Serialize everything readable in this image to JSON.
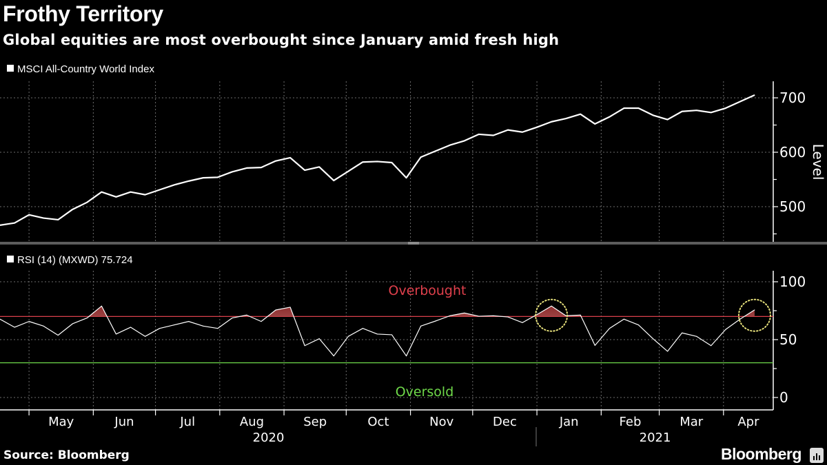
{
  "title": "Frothy Territory",
  "subtitle": "Global equities are most overbought since January amid fresh high",
  "source": "Source: Bloomberg",
  "logo": "Bloomberg",
  "colors": {
    "background": "#000000",
    "line": "#ffffff",
    "overbought": "#e0404c",
    "oversold": "#6fd94a",
    "overbought_fill": "#8e2e2e",
    "annotation": "#e8e27c",
    "grid": "#8a8a8a"
  },
  "x_axis": {
    "range": [
      "2020-04-17",
      "2021-04-25"
    ],
    "months": [
      {
        "label": "May",
        "start": "2020-05-01",
        "end": "2020-06-01"
      },
      {
        "label": "Jun",
        "start": "2020-06-01",
        "end": "2020-07-01"
      },
      {
        "label": "Jul",
        "start": "2020-07-01",
        "end": "2020-08-01"
      },
      {
        "label": "Aug",
        "start": "2020-08-01",
        "end": "2020-09-01"
      },
      {
        "label": "Sep",
        "start": "2020-09-01",
        "end": "2020-10-01"
      },
      {
        "label": "Oct",
        "start": "2020-10-01",
        "end": "2020-11-01"
      },
      {
        "label": "Nov",
        "start": "2020-11-01",
        "end": "2020-12-01"
      },
      {
        "label": "Dec",
        "start": "2020-12-01",
        "end": "2021-01-01"
      },
      {
        "label": "Jan",
        "start": "2021-01-01",
        "end": "2021-02-01"
      },
      {
        "label": "Feb",
        "start": "2021-02-01",
        "end": "2021-03-01"
      },
      {
        "label": "Mar",
        "start": "2021-03-01",
        "end": "2021-04-01"
      },
      {
        "label": "Apr",
        "start": "2021-04-01",
        "end": "2021-04-25"
      }
    ],
    "years": [
      {
        "label": "2020",
        "start": "2020-04-17",
        "end": "2021-01-01"
      },
      {
        "label": "2021",
        "start": "2021-01-01",
        "end": "2021-04-25"
      }
    ]
  },
  "chart_data": [
    {
      "type": "line",
      "legend": "MSCI All-Country World Index",
      "ylabel": "Level",
      "ylim": [
        436,
        730
      ],
      "yticks": [
        500,
        600,
        700
      ],
      "yminor": [
        450,
        550,
        650
      ],
      "grid": true,
      "legend_position": "top-left",
      "x": [
        "2020-04-17",
        "2020-04-24",
        "2020-05-01",
        "2020-05-08",
        "2020-05-15",
        "2020-05-22",
        "2020-05-29",
        "2020-06-05",
        "2020-06-12",
        "2020-06-19",
        "2020-06-26",
        "2020-07-03",
        "2020-07-10",
        "2020-07-17",
        "2020-07-24",
        "2020-07-31",
        "2020-08-07",
        "2020-08-14",
        "2020-08-21",
        "2020-08-28",
        "2020-09-04",
        "2020-09-11",
        "2020-09-18",
        "2020-09-25",
        "2020-10-02",
        "2020-10-09",
        "2020-10-16",
        "2020-10-23",
        "2020-10-30",
        "2020-11-06",
        "2020-11-13",
        "2020-11-20",
        "2020-11-27",
        "2020-12-04",
        "2020-12-11",
        "2020-12-18",
        "2020-12-25",
        "2021-01-01",
        "2021-01-08",
        "2021-01-15",
        "2021-01-22",
        "2021-01-29",
        "2021-02-05",
        "2021-02-12",
        "2021-02-19",
        "2021-02-26",
        "2021-03-05",
        "2021-03-12",
        "2021-03-19",
        "2021-03-26",
        "2021-04-02",
        "2021-04-09",
        "2021-04-16"
      ],
      "values": [
        466,
        470,
        485,
        479,
        476,
        495,
        508,
        527,
        518,
        527,
        522,
        531,
        540,
        547,
        553,
        554,
        564,
        571,
        572,
        584,
        590,
        567,
        573,
        548,
        565,
        582,
        583,
        581,
        553,
        591,
        602,
        613,
        621,
        633,
        631,
        641,
        637,
        646,
        656,
        662,
        670,
        652,
        665,
        681,
        681,
        668,
        660,
        675,
        677,
        673,
        681,
        693,
        705
      ]
    },
    {
      "type": "line",
      "legend": "RSI (14) (MXWD) 75.724",
      "ylim": [
        -11,
        110
      ],
      "yticks": [
        0,
        50,
        100
      ],
      "yminor": [
        25,
        75
      ],
      "grid": true,
      "legend_position": "top-left",
      "reference_lines": [
        {
          "label": "Overbought",
          "value": 70
        },
        {
          "label": "Oversold",
          "value": 30
        }
      ],
      "annotations": [
        {
          "type": "dotted-circle",
          "date": "2021-01-08",
          "value": 71
        },
        {
          "type": "dotted-circle",
          "date": "2021-04-16",
          "value": 71
        }
      ],
      "x": [
        "2020-04-17",
        "2020-04-24",
        "2020-05-01",
        "2020-05-08",
        "2020-05-15",
        "2020-05-22",
        "2020-05-29",
        "2020-06-05",
        "2020-06-12",
        "2020-06-19",
        "2020-06-26",
        "2020-07-03",
        "2020-07-10",
        "2020-07-17",
        "2020-07-24",
        "2020-07-31",
        "2020-08-07",
        "2020-08-14",
        "2020-08-21",
        "2020-08-28",
        "2020-09-04",
        "2020-09-11",
        "2020-09-18",
        "2020-09-25",
        "2020-10-02",
        "2020-10-09",
        "2020-10-16",
        "2020-10-23",
        "2020-10-30",
        "2020-11-06",
        "2020-11-13",
        "2020-11-20",
        "2020-11-27",
        "2020-12-04",
        "2020-12-11",
        "2020-12-18",
        "2020-12-25",
        "2021-01-01",
        "2021-01-08",
        "2021-01-15",
        "2021-01-22",
        "2021-01-29",
        "2021-02-05",
        "2021-02-12",
        "2021-02-19",
        "2021-02-26",
        "2021-03-05",
        "2021-03-12",
        "2021-03-19",
        "2021-03-26",
        "2021-04-02",
        "2021-04-09",
        "2021-04-16"
      ],
      "values": [
        67.7,
        60.7,
        65.7,
        61.7,
        53.8,
        63.7,
        68.7,
        79,
        54.8,
        60.7,
        52.8,
        59.7,
        62.7,
        65.7,
        61.7,
        59.7,
        68.7,
        71.2,
        65.7,
        75.6,
        78,
        44.8,
        50.8,
        35.9,
        52.8,
        59.7,
        54.8,
        54.2,
        35.9,
        61.7,
        66,
        70.6,
        73,
        70.2,
        70.6,
        69.6,
        64.7,
        71.6,
        79,
        70.6,
        71.2,
        45,
        59.7,
        67.7,
        62.7,
        50.8,
        39.9,
        55.8,
        52.8,
        44.8,
        58.7,
        67.7,
        75.7
      ]
    }
  ]
}
